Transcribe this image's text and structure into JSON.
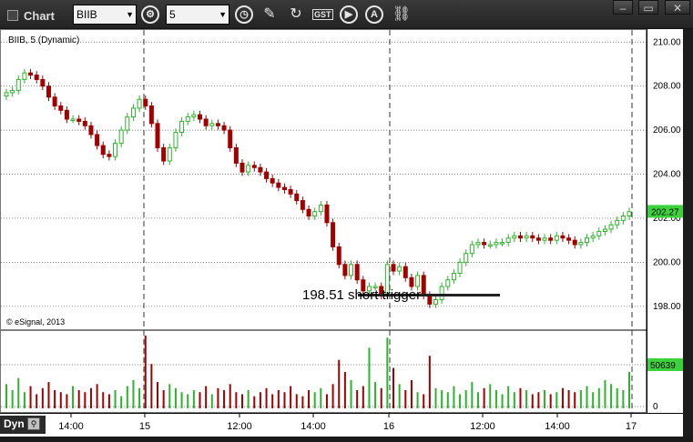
{
  "toolbar": {
    "title": "Chart",
    "symbol": "BIIB",
    "interval": "5",
    "icons": [
      "settings-gear-icon",
      "clock-icon",
      "pencil-draw-icon",
      "refresh-icon",
      "studies-icon",
      "play-icon",
      "zoom-icon",
      "link-icon"
    ],
    "study_label": "GST",
    "window_buttons": [
      "minimize",
      "restore",
      "close"
    ]
  },
  "chart": {
    "symbol_label": "BIIB, 5 (Dynamic)",
    "copyright": "© eSignal, 2013",
    "annotation": "198.51 short trigger",
    "last_price": "202.27",
    "last_volume": "50639",
    "bottom_mode": "Dyn",
    "colors": {
      "up": "#2bb52b",
      "down": "#a30000",
      "price_tag": "#3cd23c",
      "trigger_line": "#222222"
    }
  },
  "chart_data": {
    "type": "candlestick",
    "price_axis": {
      "ticks": [
        "210.00",
        "208.00",
        "206.00",
        "204.00",
        "202.00",
        "200.00",
        "198.00"
      ],
      "ylim": [
        197.0,
        210.3
      ]
    },
    "volume_axis": {
      "ticks": [
        "0"
      ]
    },
    "x_ticks": [
      "14:00",
      "15",
      "12:00",
      "14:00",
      "16",
      "12:00",
      "14:00",
      "17"
    ],
    "session_dividers": [
      "15",
      "16",
      "17"
    ],
    "trigger_level": 198.51,
    "close_series": [
      207.7,
      207.8,
      208.3,
      208.6,
      208.5,
      208.3,
      208.0,
      207.5,
      207.1,
      206.9,
      206.5,
      206.5,
      206.4,
      206.2,
      205.8,
      205.3,
      204.9,
      204.8,
      205.4,
      206.0,
      206.6,
      207.0,
      207.4,
      207.1,
      206.3,
      205.2,
      204.6,
      205.2,
      205.9,
      206.4,
      206.6,
      206.7,
      206.5,
      206.2,
      206.3,
      206.2,
      206.0,
      205.2,
      204.5,
      204.1,
      204.4,
      204.3,
      204.1,
      203.8,
      203.6,
      203.4,
      203.3,
      203.1,
      202.8,
      202.4,
      202.1,
      202.3,
      202.6,
      201.8,
      200.7,
      199.9,
      199.4,
      199.9,
      199.2,
      198.7,
      198.9,
      198.9,
      198.5,
      199.9,
      199.6,
      199.8,
      199.3,
      198.9,
      199.4,
      198.5,
      198.1,
      198.3,
      198.9,
      199.2,
      199.5,
      200.0,
      200.4,
      200.8,
      200.9,
      200.8,
      200.8,
      200.9,
      200.9,
      201.1,
      201.2,
      201.1,
      201.2,
      201.1,
      201.0,
      201.1,
      201.0,
      201.2,
      201.1,
      201.0,
      200.8,
      200.9,
      201.1,
      201.2,
      201.4,
      201.5,
      201.7,
      201.9,
      202.1,
      202.3
    ],
    "volume_series": [
      12,
      9,
      15,
      8,
      11,
      7,
      10,
      13,
      9,
      8,
      7,
      11,
      9,
      8,
      10,
      12,
      8,
      7,
      9,
      6,
      11,
      14,
      10,
      36,
      22,
      13,
      9,
      12,
      10,
      8,
      7,
      9,
      8,
      11,
      7,
      10,
      9,
      12,
      8,
      7,
      9,
      6,
      8,
      10,
      7,
      9,
      8,
      11,
      7,
      6,
      9,
      8,
      10,
      7,
      12,
      24,
      18,
      14,
      9,
      11,
      30,
      13,
      10,
      35,
      20,
      12,
      9,
      14,
      8,
      7,
      26,
      10,
      9,
      8,
      11,
      7,
      9,
      13,
      8,
      10,
      12,
      9,
      7,
      11,
      8,
      10,
      9,
      7,
      8,
      9,
      7,
      8,
      10,
      9,
      8,
      9,
      11,
      8,
      10,
      14,
      12,
      10,
      9,
      18
    ]
  }
}
